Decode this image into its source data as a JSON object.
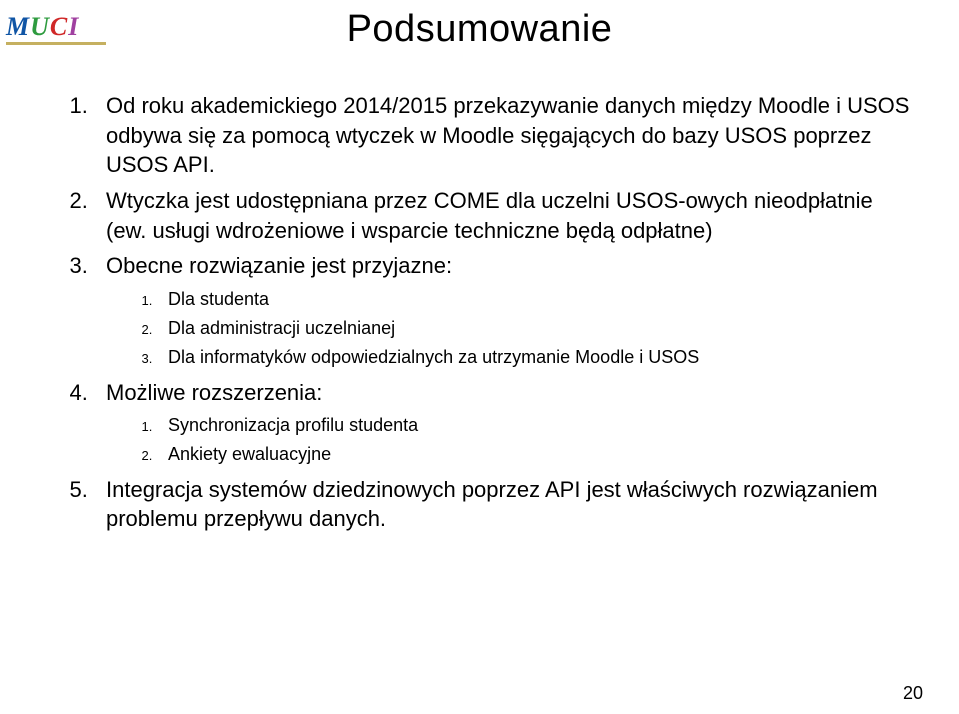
{
  "logo": {
    "letters": {
      "m": "M",
      "u": "U",
      "c": "C",
      "i": "I"
    }
  },
  "title": "Podsumowanie",
  "items": [
    {
      "text": "Od roku akademickiego 2014/2015 przekazywanie danych między Moodle i USOS odbywa się za pomocą wtyczek w Moodle sięgających do bazy USOS poprzez USOS API."
    },
    {
      "text": "Wtyczka jest udostępniana przez COME dla uczelni USOS-owych nieodpłatnie (ew. usługi wdrożeniowe i wsparcie techniczne będą odpłatne)"
    },
    {
      "text": "Obecne rozwiązanie jest  przyjazne:",
      "sub": [
        "Dla studenta",
        "Dla administracji uczelnianej",
        "Dla informatyków odpowiedzialnych za utrzymanie Moodle i USOS"
      ]
    },
    {
      "text": "Możliwe rozszerzenia:",
      "sub": [
        "Synchronizacja profilu studenta",
        "Ankiety ewaluacyjne"
      ]
    },
    {
      "text": "Integracja systemów dziedzinowych poprzez API jest właściwych rozwiązaniem problemu przepływu danych."
    }
  ],
  "page_number": "20",
  "style": {
    "background_color": "#ffffff",
    "text_color": "#000000",
    "title_fontsize": 38,
    "body_fontsize": 22,
    "sub_fontsize": 18,
    "sub_marker_fontsize": 13,
    "logo_underline_color": "#c5b060",
    "logo_colors": {
      "M": "#1055a5",
      "U": "#2e9b3f",
      "C": "#d02828",
      "I": "#a040a0"
    }
  }
}
